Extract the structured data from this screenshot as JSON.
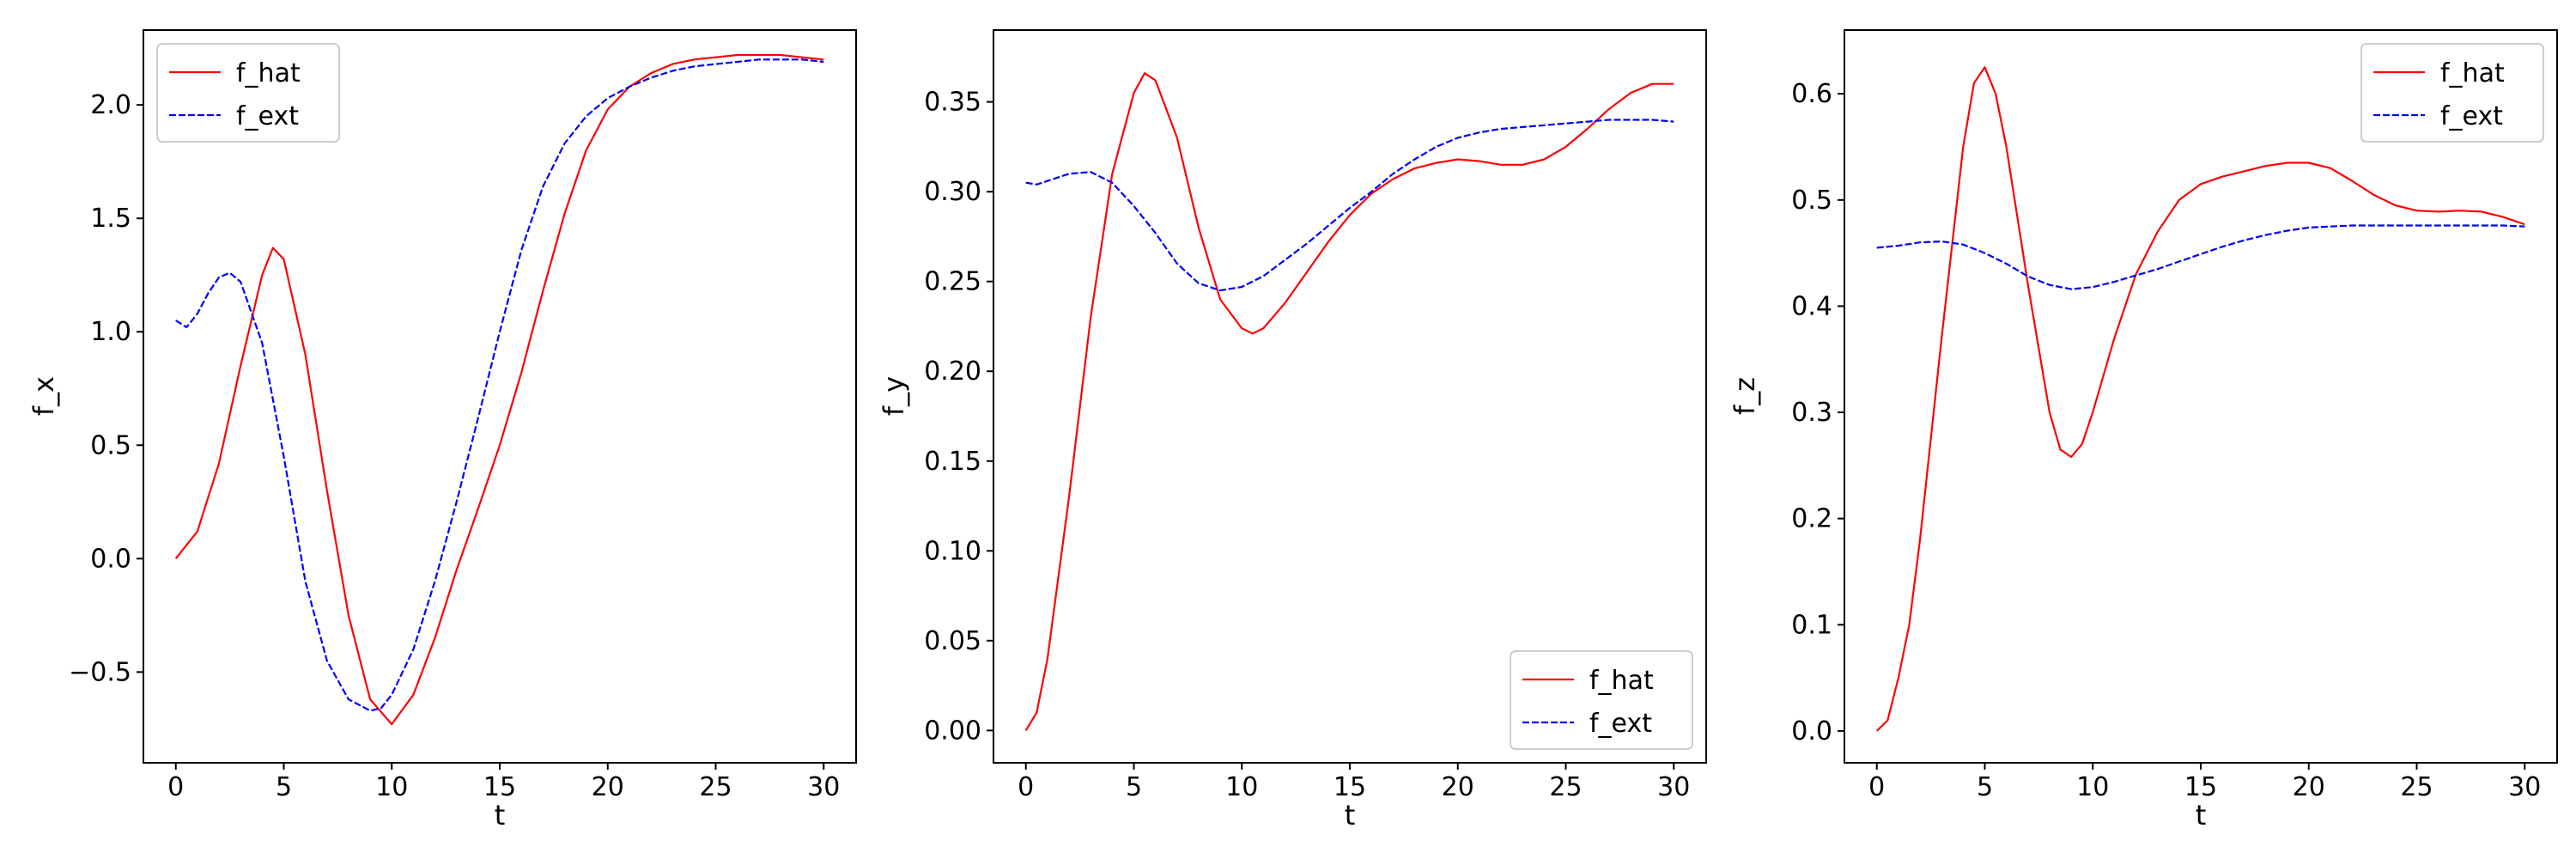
{
  "chart_data": [
    {
      "type": "line",
      "title": "",
      "xlabel": "t",
      "ylabel": "f_x",
      "xlim": [
        -1.5,
        31.5
      ],
      "ylim": [
        -0.9,
        2.33
      ],
      "xticks": [
        0,
        5,
        10,
        15,
        20,
        25,
        30
      ],
      "xtick_labels": [
        "0",
        "5",
        "10",
        "15",
        "20",
        "25",
        "30"
      ],
      "yticks": [
        -0.5,
        0.0,
        0.5,
        1.0,
        1.5,
        2.0
      ],
      "ytick_labels": [
        "−0.5",
        "0.0",
        "0.5",
        "1.0",
        "1.5",
        "2.0"
      ],
      "grid": false,
      "legend_position": "top-left",
      "series": [
        {
          "name": "f_hat",
          "color": "#ff0000",
          "style": "solid",
          "x": [
            0,
            1,
            2,
            3,
            4,
            4.5,
            5,
            6,
            7,
            8,
            9,
            10,
            11,
            12,
            13,
            14,
            15,
            16,
            17,
            18,
            19,
            20,
            21,
            22,
            23,
            24,
            25,
            26,
            27,
            28,
            29,
            30
          ],
          "y": [
            0.0,
            0.12,
            0.42,
            0.85,
            1.25,
            1.37,
            1.32,
            0.9,
            0.3,
            -0.25,
            -0.62,
            -0.73,
            -0.6,
            -0.35,
            -0.05,
            0.22,
            0.5,
            0.82,
            1.18,
            1.52,
            1.8,
            1.98,
            2.08,
            2.14,
            2.18,
            2.2,
            2.21,
            2.22,
            2.22,
            2.22,
            2.21,
            2.2
          ]
        },
        {
          "name": "f_ext",
          "color": "#0000ff",
          "style": "dashed",
          "x": [
            0,
            0.5,
            1,
            1.5,
            2,
            2.5,
            3,
            4,
            5,
            6,
            7,
            8,
            9,
            9.5,
            10,
            11,
            12,
            13,
            14,
            15,
            16,
            17,
            18,
            19,
            20,
            21,
            22,
            23,
            24,
            25,
            26,
            27,
            28,
            29,
            30
          ],
          "y": [
            1.05,
            1.02,
            1.08,
            1.17,
            1.24,
            1.26,
            1.22,
            0.95,
            0.45,
            -0.1,
            -0.45,
            -0.62,
            -0.67,
            -0.66,
            -0.6,
            -0.4,
            -0.1,
            0.25,
            0.62,
            1.0,
            1.36,
            1.64,
            1.83,
            1.95,
            2.03,
            2.08,
            2.12,
            2.15,
            2.17,
            2.18,
            2.19,
            2.2,
            2.2,
            2.2,
            2.19
          ]
        }
      ]
    },
    {
      "type": "line",
      "title": "",
      "xlabel": "t",
      "ylabel": "f_y",
      "xlim": [
        -1.5,
        31.5
      ],
      "ylim": [
        -0.018,
        0.39
      ],
      "xticks": [
        0,
        5,
        10,
        15,
        20,
        25,
        30
      ],
      "xtick_labels": [
        "0",
        "5",
        "10",
        "15",
        "20",
        "25",
        "30"
      ],
      "yticks": [
        0.0,
        0.05,
        0.1,
        0.15,
        0.2,
        0.25,
        0.3,
        0.35
      ],
      "ytick_labels": [
        "0.00",
        "0.05",
        "0.10",
        "0.15",
        "0.20",
        "0.25",
        "0.30",
        "0.35"
      ],
      "grid": false,
      "legend_position": "bottom-right",
      "series": [
        {
          "name": "f_hat",
          "color": "#ff0000",
          "style": "solid",
          "x": [
            0,
            0.5,
            1,
            2,
            3,
            4,
            5,
            5.5,
            6,
            7,
            8,
            9,
            10,
            10.5,
            11,
            12,
            13,
            14,
            15,
            16,
            17,
            18,
            19,
            20,
            21,
            22,
            23,
            24,
            25,
            26,
            27,
            28,
            29,
            30
          ],
          "y": [
            0.0,
            0.01,
            0.04,
            0.13,
            0.23,
            0.31,
            0.355,
            0.366,
            0.362,
            0.33,
            0.28,
            0.24,
            0.224,
            0.221,
            0.224,
            0.238,
            0.255,
            0.272,
            0.287,
            0.299,
            0.307,
            0.313,
            0.316,
            0.318,
            0.317,
            0.315,
            0.315,
            0.318,
            0.325,
            0.335,
            0.346,
            0.355,
            0.36,
            0.36
          ]
        },
        {
          "name": "f_ext",
          "color": "#0000ff",
          "style": "dashed",
          "x": [
            0,
            0.5,
            1,
            2,
            3,
            4,
            5,
            6,
            7,
            8,
            9,
            10,
            11,
            12,
            13,
            14,
            15,
            16,
            17,
            18,
            19,
            20,
            21,
            22,
            23,
            24,
            25,
            26,
            27,
            28,
            29,
            30
          ],
          "y": [
            0.305,
            0.304,
            0.306,
            0.31,
            0.311,
            0.305,
            0.292,
            0.277,
            0.26,
            0.249,
            0.245,
            0.247,
            0.253,
            0.262,
            0.271,
            0.281,
            0.291,
            0.3,
            0.31,
            0.318,
            0.325,
            0.33,
            0.333,
            0.335,
            0.336,
            0.337,
            0.338,
            0.339,
            0.34,
            0.34,
            0.34,
            0.339
          ]
        }
      ]
    },
    {
      "type": "line",
      "title": "",
      "xlabel": "t",
      "ylabel": "f_z",
      "xlim": [
        -1.5,
        31.5
      ],
      "ylim": [
        -0.03,
        0.66
      ],
      "xticks": [
        0,
        5,
        10,
        15,
        20,
        25,
        30
      ],
      "xtick_labels": [
        "0",
        "5",
        "10",
        "15",
        "20",
        "25",
        "30"
      ],
      "yticks": [
        0.0,
        0.1,
        0.2,
        0.3,
        0.4,
        0.5,
        0.6
      ],
      "ytick_labels": [
        "0.0",
        "0.1",
        "0.2",
        "0.3",
        "0.4",
        "0.5",
        "0.6"
      ],
      "grid": false,
      "legend_position": "top-right",
      "series": [
        {
          "name": "f_hat",
          "color": "#ff0000",
          "style": "solid",
          "x": [
            0,
            0.5,
            1,
            1.5,
            2,
            3,
            4,
            4.5,
            5,
            5.5,
            6,
            7,
            8,
            8.5,
            9,
            9.5,
            10,
            11,
            12,
            13,
            14,
            15,
            16,
            17,
            18,
            19,
            20,
            21,
            22,
            23,
            24,
            25,
            26,
            27,
            28,
            29,
            30
          ],
          "y": [
            0.0,
            0.01,
            0.05,
            0.1,
            0.18,
            0.37,
            0.55,
            0.61,
            0.625,
            0.6,
            0.55,
            0.42,
            0.3,
            0.265,
            0.258,
            0.27,
            0.3,
            0.37,
            0.43,
            0.47,
            0.5,
            0.515,
            0.522,
            0.527,
            0.532,
            0.535,
            0.535,
            0.53,
            0.518,
            0.505,
            0.495,
            0.49,
            0.489,
            0.49,
            0.489,
            0.484,
            0.477
          ]
        },
        {
          "name": "f_ext",
          "color": "#0000ff",
          "style": "dashed",
          "x": [
            0,
            1,
            2,
            3,
            4,
            5,
            6,
            7,
            8,
            9,
            10,
            11,
            12,
            13,
            14,
            15,
            16,
            17,
            18,
            19,
            20,
            21,
            22,
            23,
            24,
            25,
            26,
            27,
            28,
            29,
            30
          ],
          "y": [
            0.455,
            0.457,
            0.46,
            0.461,
            0.458,
            0.45,
            0.44,
            0.428,
            0.42,
            0.416,
            0.418,
            0.423,
            0.429,
            0.435,
            0.442,
            0.449,
            0.456,
            0.462,
            0.467,
            0.471,
            0.474,
            0.475,
            0.476,
            0.476,
            0.476,
            0.476,
            0.476,
            0.476,
            0.476,
            0.476,
            0.475
          ]
        }
      ]
    }
  ]
}
